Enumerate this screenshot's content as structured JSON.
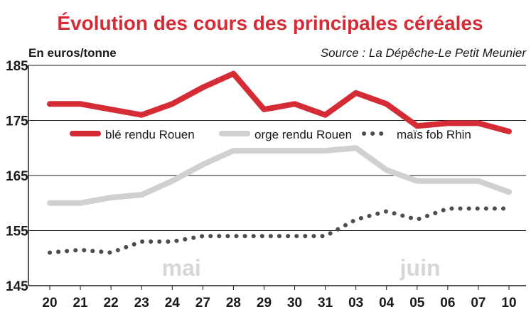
{
  "chart_data": {
    "type": "line",
    "title": "Évolution des cours des principales céréales",
    "ylabel": "En euros/tonne",
    "source": "Source : La Dépêche-Le Petit Meunier",
    "ylim": [
      145,
      185
    ],
    "yticks": [
      145,
      155,
      165,
      175,
      185
    ],
    "categories": [
      "20",
      "21",
      "22",
      "23",
      "24",
      "27",
      "28",
      "29",
      "30",
      "31",
      "03",
      "04",
      "05",
      "06",
      "07",
      "10"
    ],
    "month_labels": [
      "mai",
      "juin"
    ],
    "grid": true,
    "legend_position": "top",
    "series": [
      {
        "name": "blé rendu Rouen",
        "color": "#d42b35",
        "style": "solid",
        "values": [
          178,
          178,
          177,
          176,
          178,
          181,
          183.5,
          177,
          178,
          176,
          180,
          178,
          174,
          174.5,
          174.5,
          173
        ]
      },
      {
        "name": "orge rendu Rouen",
        "color": "#d0d0d0",
        "style": "solid",
        "values": [
          160,
          160,
          161,
          161.5,
          164,
          167,
          169.5,
          169.5,
          169.5,
          169.5,
          170,
          166,
          164,
          164,
          164,
          162
        ]
      },
      {
        "name": "maïs fob Rhin",
        "color": "#4d4d4d",
        "style": "dotted",
        "values": [
          151,
          151.5,
          151,
          153,
          153,
          154,
          154,
          154,
          154,
          154,
          157,
          158.5,
          157,
          159,
          159,
          159
        ]
      }
    ]
  }
}
